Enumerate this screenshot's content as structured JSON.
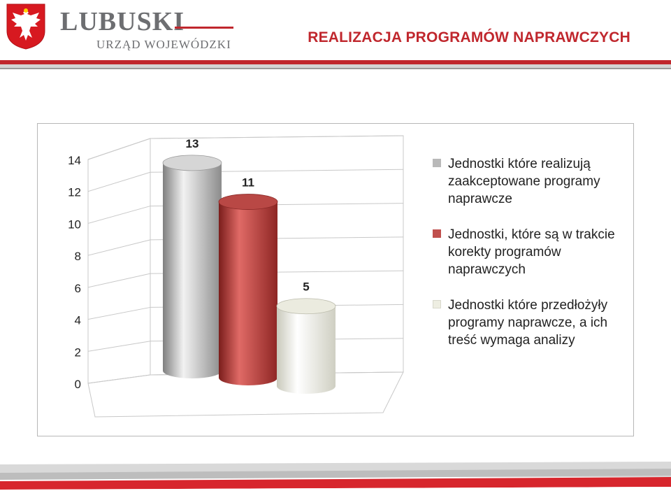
{
  "header": {
    "brand_name": "LUBUSKI",
    "brand_sub": "URZĄD WOJEWÓDZKI",
    "slide_title": "REALIZACJA PROGRAMÓW NAPRAWCZYCH",
    "crest_icon": "white-eagle-crest-icon",
    "accent_color": "#c0272d"
  },
  "chart_data": {
    "type": "bar",
    "style": "3d-cylinder",
    "title": "",
    "xlabel": "",
    "ylabel": "",
    "ylim": [
      0,
      14
    ],
    "yticks": [
      "0",
      "2",
      "4",
      "6",
      "8",
      "10",
      "12",
      "14"
    ],
    "grid": true,
    "legend_position": "right",
    "series": [
      {
        "name": "Jednostki które realizują zaakceptowane programy naprawcze",
        "value": 13,
        "label": "13",
        "color": "#b9b9b9"
      },
      {
        "name": "Jednostki, które są w trakcie korekty programów naprawczych",
        "value": 11,
        "label": "11",
        "color": "#c0504d"
      },
      {
        "name": "Jednostki które przedłożyły programy naprawcze, a ich treść wymaga analizy",
        "value": 5,
        "label": "5",
        "color": "#eeeee2"
      }
    ]
  }
}
